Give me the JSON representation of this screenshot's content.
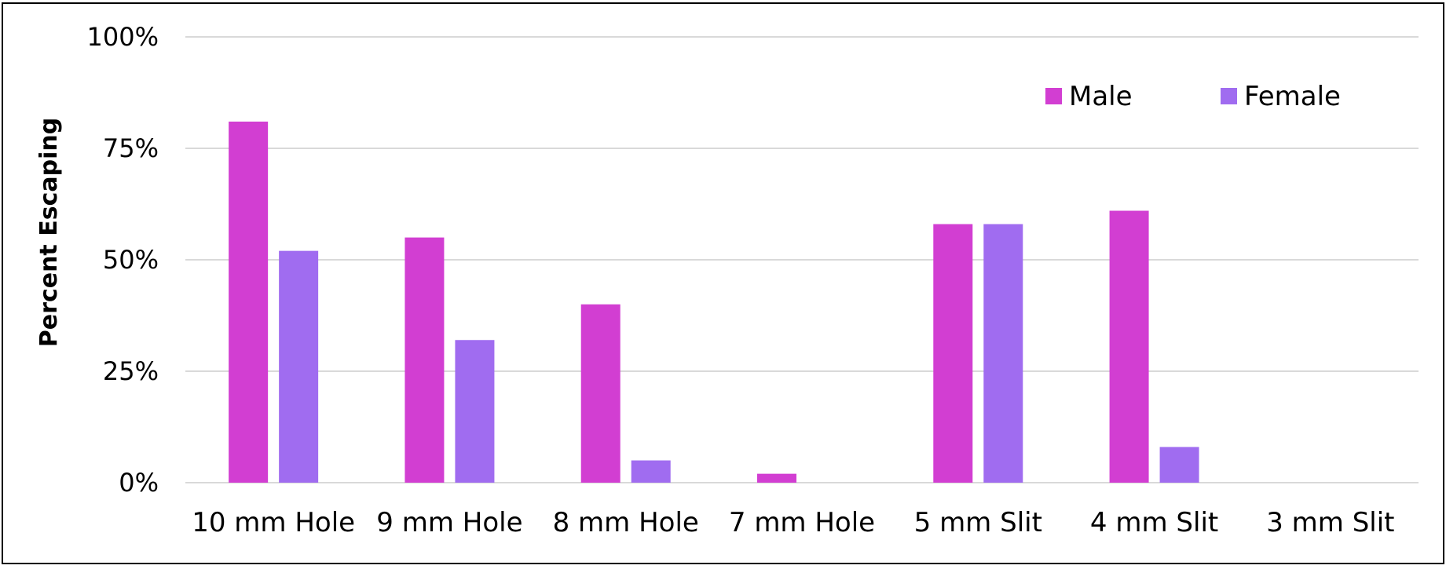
{
  "chart_data": {
    "type": "bar",
    "title": "",
    "xlabel": "",
    "ylabel": "Percent Escaping",
    "ylim": [
      0,
      100
    ],
    "yticks": [
      "0%",
      "25%",
      "50%",
      "75%",
      "100%"
    ],
    "ytick_values": [
      0,
      25,
      50,
      75,
      100
    ],
    "grid": true,
    "legend_position": "top-right",
    "categories": [
      "10 mm Hole",
      "9 mm Hole",
      "8 mm Hole",
      "7 mm Hole",
      "5 mm Slit",
      "4 mm Slit",
      "3 mm Slit"
    ],
    "series": [
      {
        "name": "Male",
        "color": "#d23ed2",
        "values": [
          81,
          55,
          40,
          2,
          58,
          61,
          0
        ]
      },
      {
        "name": "Female",
        "color": "#a06cf0",
        "values": [
          52,
          32,
          5,
          0,
          58,
          8,
          0
        ]
      }
    ]
  }
}
